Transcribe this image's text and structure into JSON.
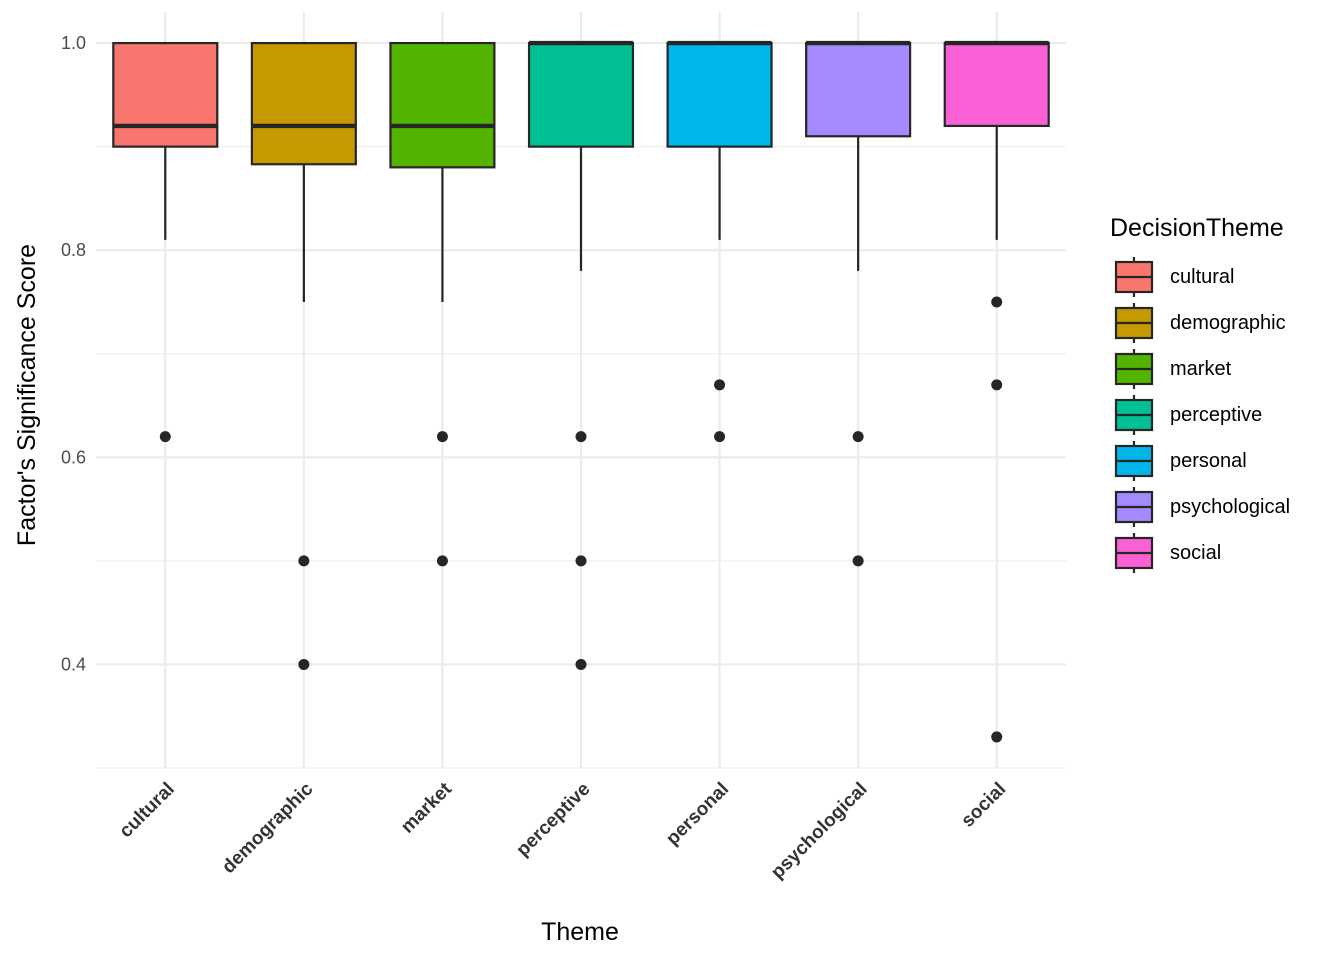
{
  "chart_data": {
    "type": "boxplot",
    "xlabel": "Theme",
    "ylabel": "Factor's Significance Score",
    "ylim": [
      0.3,
      1.03
    ],
    "yticks": [
      0.4,
      0.6,
      0.8,
      1.0
    ],
    "ytick_labels": [
      "0.4",
      "0.6",
      "0.8",
      "1.0"
    ],
    "grid": true,
    "legend": {
      "title": "DecisionTheme",
      "position": "right"
    },
    "categories": [
      "cultural",
      "demographic",
      "market",
      "perceptive",
      "personal",
      "psychological",
      "social"
    ],
    "colors": [
      "#F8766D",
      "#C49A00",
      "#53B400",
      "#00C094",
      "#00B6EB",
      "#A58AFF",
      "#FB61D7"
    ],
    "boxes": [
      {
        "name": "cultural",
        "lower_whisker": 0.81,
        "q1": 0.9,
        "median": 0.92,
        "q3": 1.0,
        "upper_whisker": 1.0,
        "outliers": [
          0.62
        ]
      },
      {
        "name": "demographic",
        "lower_whisker": 0.75,
        "q1": 0.883,
        "median": 0.92,
        "q3": 1.0,
        "upper_whisker": 1.0,
        "outliers": [
          0.5,
          0.4
        ]
      },
      {
        "name": "market",
        "lower_whisker": 0.75,
        "q1": 0.88,
        "median": 0.92,
        "q3": 1.0,
        "upper_whisker": 1.0,
        "outliers": [
          0.62,
          0.5
        ]
      },
      {
        "name": "perceptive",
        "lower_whisker": 0.78,
        "q1": 0.9,
        "median": 1.0,
        "q3": 1.0,
        "upper_whisker": 1.0,
        "outliers": [
          0.62,
          0.5,
          0.4
        ]
      },
      {
        "name": "personal",
        "lower_whisker": 0.81,
        "q1": 0.9,
        "median": 1.0,
        "q3": 1.0,
        "upper_whisker": 1.0,
        "outliers": [
          0.67,
          0.62
        ]
      },
      {
        "name": "psychological",
        "lower_whisker": 0.78,
        "q1": 0.91,
        "median": 1.0,
        "q3": 1.0,
        "upper_whisker": 1.0,
        "outliers": [
          0.62,
          0.5
        ]
      },
      {
        "name": "social",
        "lower_whisker": 0.81,
        "q1": 0.92,
        "median": 1.0,
        "q3": 1.0,
        "upper_whisker": 1.0,
        "outliers": [
          0.75,
          0.67,
          0.33
        ]
      }
    ]
  }
}
